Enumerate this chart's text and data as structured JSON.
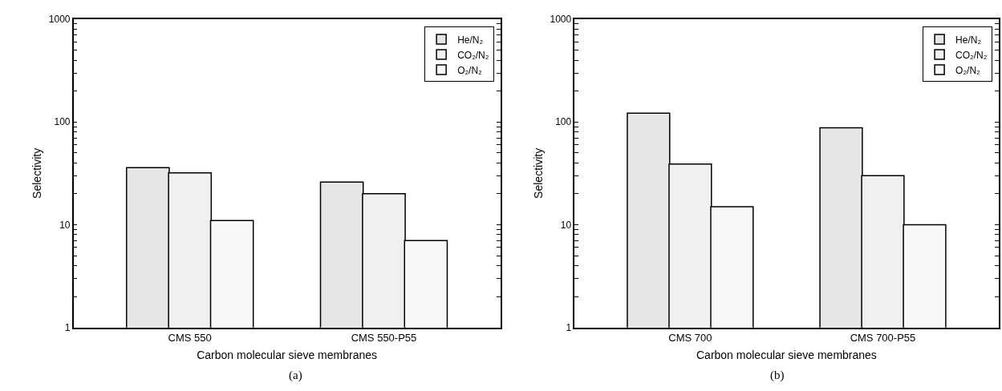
{
  "chart_data": [
    {
      "type": "bar",
      "xlabel": "Carbon molecular sieve membranes",
      "ylabel": "Selectivity",
      "categories": [
        "CMS 550",
        "CMS 550-P55"
      ],
      "series": [
        {
          "name": "He/N₂",
          "color": "#e6e6e6",
          "values": [
            36,
            26
          ]
        },
        {
          "name": "CO₂/N₂",
          "color": "#f0f0f0",
          "values": [
            32,
            20
          ]
        },
        {
          "name": "O₂/N₂",
          "color": "#f8f8f8",
          "values": [
            11,
            7
          ]
        }
      ],
      "log": "y",
      "ylim": [
        1,
        1000
      ],
      "yticks": [
        1,
        {
          "value": 2,
          "label": null
        },
        {
          "value": 3,
          "label": null
        },
        {
          "value": 4,
          "label": null
        },
        {
          "value": 5,
          "label": null
        },
        {
          "value": 6,
          "label": null
        },
        {
          "value": 7,
          "label": null
        },
        {
          "value": 8,
          "label": null
        },
        {
          "value": 9,
          "label": null
        },
        10,
        {
          "value": 20,
          "label": null
        },
        {
          "value": 30,
          "label": null
        },
        {
          "value": 40,
          "label": null
        },
        {
          "value": 50,
          "label": null
        },
        {
          "value": 60,
          "label": null
        },
        {
          "value": 70,
          "label": null
        },
        {
          "value": 80,
          "label": null
        },
        {
          "value": 90,
          "label": null
        },
        100,
        {
          "value": 200,
          "label": null
        },
        {
          "value": 300,
          "label": null
        },
        {
          "value": 400,
          "label": null
        },
        {
          "value": 500,
          "label": null
        },
        {
          "value": 600,
          "label": null
        },
        {
          "value": 700,
          "label": null
        },
        {
          "value": 800,
          "label": null
        },
        {
          "value": 900,
          "label": null
        },
        1000
      ],
      "legend": "top right",
      "annotations": [
        "(a)"
      ]
    },
    {
      "type": "bar",
      "xlabel": "Carbon molecular sieve membranes",
      "ylabel": "Selectivity",
      "categories": [
        "CMS 700",
        "CMS 700-P55"
      ],
      "series": [
        {
          "name": "He/N₂",
          "color": "#e6e6e6",
          "values": [
            122,
            88
          ]
        },
        {
          "name": "CO₂/N₂",
          "color": "#f0f0f0",
          "values": [
            39,
            30
          ]
        },
        {
          "name": "O₂/N₂",
          "color": "#f8f8f8",
          "values": [
            15,
            10
          ]
        }
      ],
      "log": "y",
      "ylim": [
        1,
        1000
      ],
      "yticks": [
        1,
        {
          "value": 2,
          "label": null
        },
        {
          "value": 3,
          "label": null
        },
        {
          "value": 4,
          "label": null
        },
        {
          "value": 5,
          "label": null
        },
        {
          "value": 6,
          "label": null
        },
        {
          "value": 7,
          "label": null
        },
        {
          "value": 8,
          "label": null
        },
        {
          "value": 9,
          "label": null
        },
        10,
        {
          "value": 20,
          "label": null
        },
        {
          "value": 30,
          "label": null
        },
        {
          "value": 40,
          "label": null
        },
        {
          "value": 50,
          "label": null
        },
        {
          "value": 60,
          "label": null
        },
        {
          "value": 70,
          "label": null
        },
        {
          "value": 80,
          "label": null
        },
        {
          "value": 90,
          "label": null
        },
        100,
        {
          "value": 200,
          "label": null
        },
        {
          "value": 300,
          "label": null
        },
        {
          "value": 400,
          "label": null
        },
        {
          "value": 500,
          "label": null
        },
        {
          "value": 600,
          "label": null
        },
        {
          "value": 700,
          "label": null
        },
        {
          "value": 800,
          "label": null
        },
        {
          "value": 900,
          "label": null
        },
        1000
      ],
      "legend": "top right",
      "annotations": [
        "(b)"
      ]
    }
  ]
}
